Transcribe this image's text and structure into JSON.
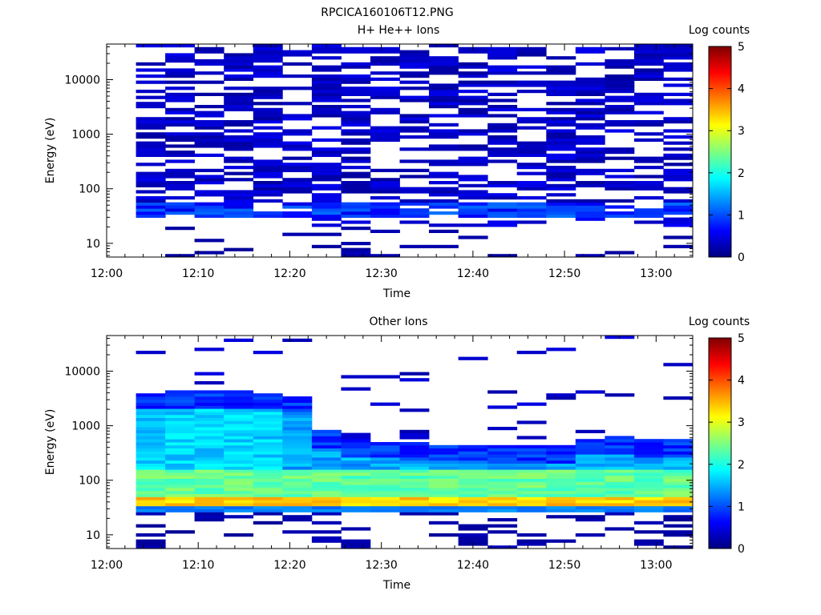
{
  "figure_title": "RPCICA160106T12.PNG",
  "chart_data": [
    {
      "type": "heatmap",
      "title": "H+ He++ Ions",
      "xlabel": "Time",
      "ylabel": "Energy (eV)",
      "x_ticks": [
        "12:00",
        "12:10",
        "12:20",
        "12:30",
        "12:40",
        "12:50",
        "13:00"
      ],
      "y_ticks": [
        "10",
        "100",
        "1000",
        "10000"
      ],
      "y_scale": "log",
      "ylim": [
        5.6,
        45000
      ],
      "xlim_minutes": [
        0,
        64
      ],
      "time_bins_minutes": [
        3.2,
        6.4,
        9.6,
        12.8,
        16.0,
        19.2,
        22.4,
        25.6,
        28.8,
        32.0,
        35.2,
        38.4,
        41.6,
        44.8,
        48.0,
        51.2,
        54.4,
        57.6,
        60.8,
        64.0
      ],
      "colorbar": {
        "label": "Log counts",
        "range": [
          0,
          5
        ],
        "ticks": [
          "0",
          "1",
          "2",
          "3",
          "4",
          "5"
        ]
      },
      "summary_by_energy": [
        {
          "energy_range_eV": [
            1000,
            45000
          ],
          "log_counts": 0.3,
          "coverage": "patchy"
        },
        {
          "energy_range_eV": [
            100,
            1000
          ],
          "log_counts": 0.3,
          "coverage": "patchy"
        },
        {
          "energy_range_eV": [
            30,
            60
          ],
          "log_counts": 0.8,
          "coverage": "mostly filled"
        },
        {
          "energy_range_eV": [
            5.6,
            20
          ],
          "log_counts": 0.1,
          "coverage": "sparse"
        }
      ]
    },
    {
      "type": "heatmap",
      "title": "Other Ions",
      "xlabel": "Time",
      "ylabel": "Energy (eV)",
      "x_ticks": [
        "12:00",
        "12:10",
        "12:20",
        "12:30",
        "12:40",
        "12:50",
        "13:00"
      ],
      "y_ticks": [
        "10",
        "100",
        "1000",
        "10000"
      ],
      "y_scale": "log",
      "ylim": [
        5.6,
        45000
      ],
      "xlim_minutes": [
        0,
        64
      ],
      "time_bins_minutes": [
        3.2,
        6.4,
        9.6,
        12.8,
        16.0,
        19.2,
        22.4,
        25.6,
        28.8,
        32.0,
        35.2,
        38.4,
        41.6,
        44.8,
        48.0,
        51.2,
        54.4,
        57.6,
        60.8,
        64.0
      ],
      "colorbar": {
        "label": "Log counts",
        "range": [
          0,
          5
        ],
        "ticks": [
          "0",
          "1",
          "2",
          "3",
          "4",
          "5"
        ]
      },
      "upper_energy_limit_eV_per_bin": [
        4000,
        4200,
        4300,
        4300,
        4000,
        3600,
        800,
        550,
        500,
        480,
        450,
        450,
        420,
        420,
        420,
        600,
        620,
        560,
        560,
        360
      ],
      "peak_band": {
        "energy_range_eV": [
          30,
          50
        ],
        "log_counts": 3.3
      },
      "mid_band": {
        "energy_range_eV": [
          60,
          150
        ],
        "log_counts": 2.3
      },
      "upper_band": {
        "energy_range_eV": [
          200,
          2000
        ],
        "log_counts": 1.6
      }
    }
  ]
}
